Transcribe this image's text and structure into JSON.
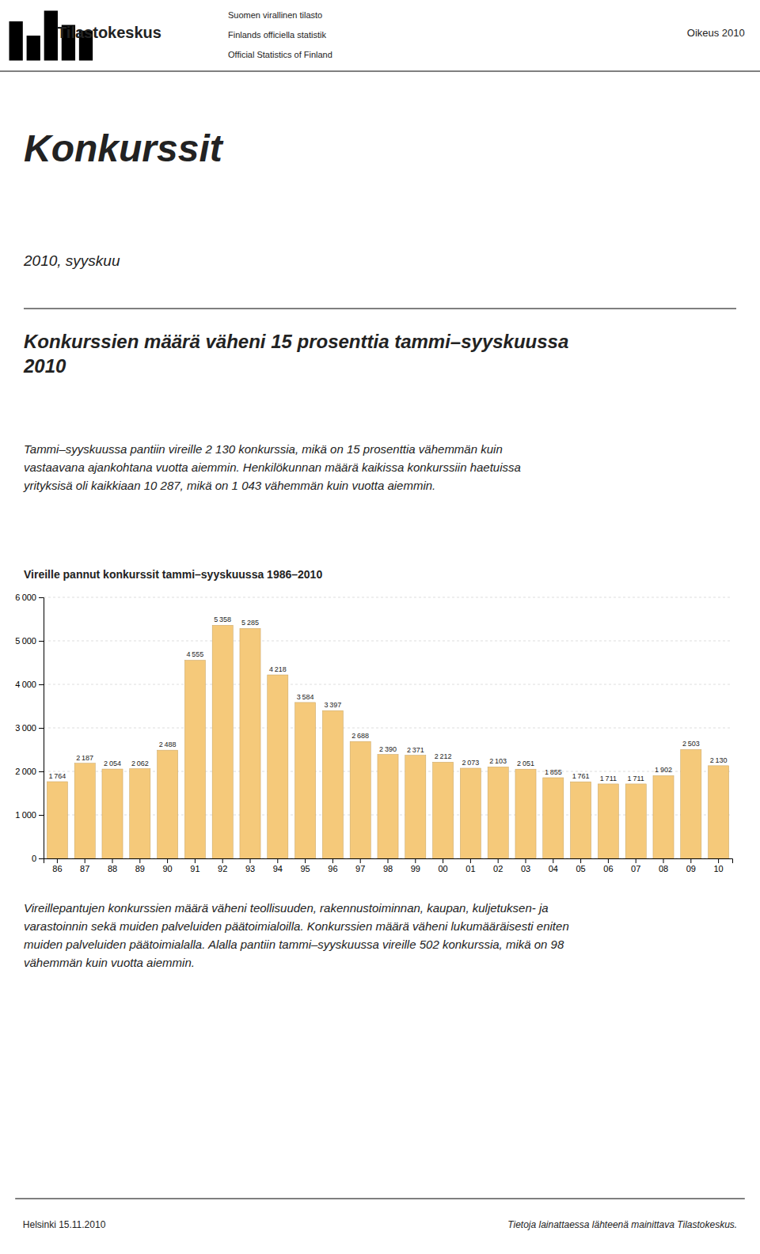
{
  "chart_data": {
    "type": "bar",
    "title": "Vireille pannut konkurssit tammi–syyskuussa 1986–2010",
    "categories": [
      "86",
      "87",
      "88",
      "89",
      "90",
      "91",
      "92",
      "93",
      "94",
      "95",
      "96",
      "97",
      "98",
      "99",
      "00",
      "01",
      "02",
      "03",
      "04",
      "05",
      "06",
      "07",
      "08",
      "09",
      "10"
    ],
    "values": [
      1764,
      2187,
      2054,
      2062,
      2488,
      4555,
      5358,
      5285,
      4218,
      3584,
      3397,
      2688,
      2390,
      2371,
      2212,
      2073,
      2103,
      2051,
      1855,
      1761,
      1711,
      1711,
      1902,
      2503,
      2130
    ],
    "value_labels": [
      "1 764",
      "2 187",
      "2 054",
      "2 062",
      "2 488",
      "4 555",
      "5 358",
      "5 285",
      "4 218",
      "3 584",
      "3 397",
      "2 688",
      "2 390",
      "2 371",
      "2 212",
      "2 073",
      "2 103",
      "2 051",
      "1 855",
      "1 761",
      "1 711",
      "1 711",
      "1 902",
      "2 503",
      "2 130"
    ],
    "data_labels": true,
    "color": "#f5c97a",
    "ylim": [
      0,
      6000
    ],
    "yticks": [
      0,
      {
        "value": 1000,
        "label": "1 000"
      },
      {
        "value": 2000,
        "label": "2 000"
      },
      {
        "value": 3000,
        "label": "3 000"
      },
      {
        "value": 4000,
        "label": "4 000"
      },
      {
        "value": 5000,
        "label": "5 000"
      },
      {
        "value": 6000,
        "label": "6 000"
      }
    ],
    "grid": true
  },
  "page": {
    "header_logo_text": "Tilastokeskus",
    "header_texts": [
      "Suomen virallinen tilasto",
      "Finlands officiella statistik",
      "Official Statistics of Finland"
    ],
    "header_right": "Oikeus 2010",
    "title": "Konkurssit",
    "subtitle": "2010, syyskuu",
    "heading": [
      "Konkurssien määrä väheni 15 prosenttia tammi–syyskuussa",
      "2010"
    ],
    "body_text2": [
      "Tammi–syyskuussa pantiin vireille 2 130 konkurssia, mikä on 15 prosenttia vähemmän kuin",
      "vastaavana ajankohtana vuotta aiemmin. Henkilökunnan määrä kaikissa konkurssiin haetuissa",
      "yrityksisä oli kaikkiaan 10 287, mikä on 1 043 vähemmän kuin vuotta aiemmin."
    ],
    "body_text3": [
      "Vireillepantujen konkurssien määrä väheni teollisuuden, rakennustoiminnan, kaupan, kuljetuksen- ja",
      "varastoinnin sekä muiden palveluiden päätoimialoilla. Konkurssien määrä väheni lukumääräisesti eniten",
      "muiden palveluiden päätoimialalla. Alalla pantiin tammi–syyskuussa vireille 502 konkurssia, mikä on 98",
      "vähemmän kuin vuotta aiemmin."
    ],
    "footer_left": "Helsinki 15.11.2010",
    "footer_right": "Tietoja lainattaessa lähteenä mainittava Tilastokeskus."
  }
}
